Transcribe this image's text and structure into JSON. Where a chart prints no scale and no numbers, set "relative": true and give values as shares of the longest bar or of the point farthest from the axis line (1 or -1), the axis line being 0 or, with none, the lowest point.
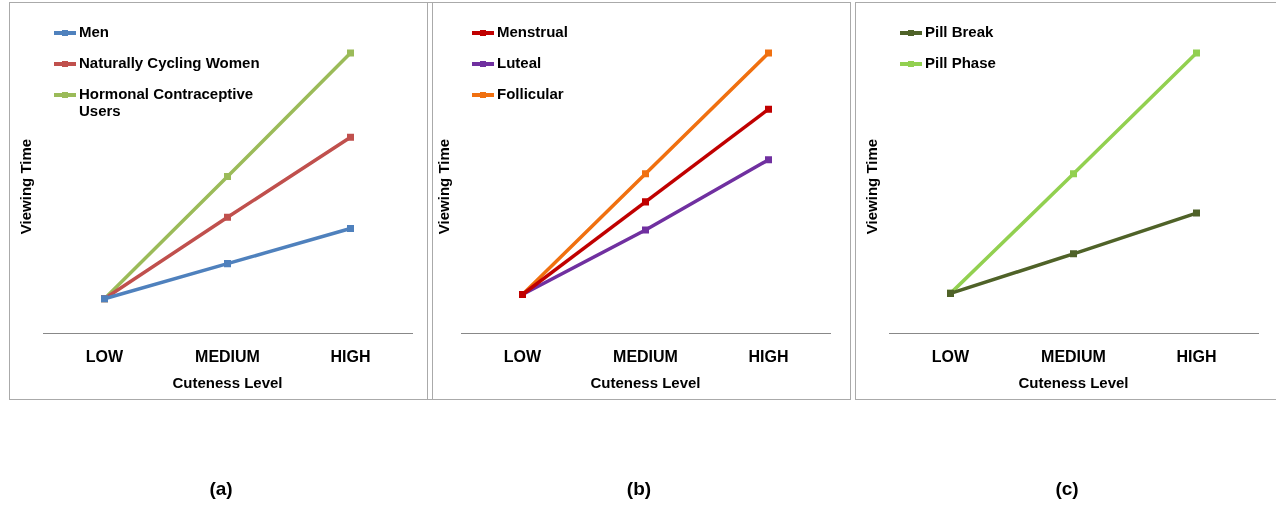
{
  "chart_data": [
    {
      "type": "line",
      "relative": true,
      "xlabel": "Cuteness Level",
      "ylabel": "Viewing Time",
      "categories": [
        "LOW",
        "MEDIUM",
        "HIGH"
      ],
      "legend": "top left",
      "marker": "square",
      "grid": false,
      "annotations": [
        "(a)"
      ],
      "series": [
        {
          "name": "Men",
          "color": "#4f81bd",
          "values": [
            0.125,
            0.25,
            0.375
          ]
        },
        {
          "name": "Naturally Cycling Women",
          "color": "#c0504d",
          "values": [
            0.125,
            0.415,
            0.7
          ]
        },
        {
          "name": "Hormonal Contraceptive Users",
          "color": "#9bbb59",
          "values": [
            0.125,
            0.56,
            1
          ]
        }
      ]
    },
    {
      "type": "line",
      "relative": true,
      "xlabel": "Cuteness Level",
      "ylabel": "Viewing Time",
      "categories": [
        "LOW",
        "MEDIUM",
        "HIGH"
      ],
      "legend": "top left",
      "marker": "square",
      "grid": false,
      "annotations": [
        "(b)"
      ],
      "series": [
        {
          "name": "Menstrual",
          "color": "#c00000",
          "values": [
            0.14,
            0.47,
            0.8
          ]
        },
        {
          "name": "Luteal",
          "color": "#7030a0",
          "values": [
            0.14,
            0.37,
            0.62
          ]
        },
        {
          "name": "Follicular",
          "color": "#f07010",
          "values": [
            0.14,
            0.57,
            1
          ]
        }
      ]
    },
    {
      "type": "line",
      "relative": true,
      "xlabel": "Cuteness Level",
      "ylabel": "Viewing Time",
      "categories": [
        "LOW",
        "MEDIUM",
        "HIGH"
      ],
      "legend": "top left",
      "marker": "square",
      "grid": false,
      "annotations": [
        "(c)"
      ],
      "series": [
        {
          "name": "Pill Break",
          "color": "#4f6228",
          "values": [
            0.144,
            0.285,
            0.43
          ]
        },
        {
          "name": "Pill Phase",
          "color": "#92d050",
          "values": [
            0.144,
            0.57,
            1
          ]
        }
      ]
    }
  ]
}
